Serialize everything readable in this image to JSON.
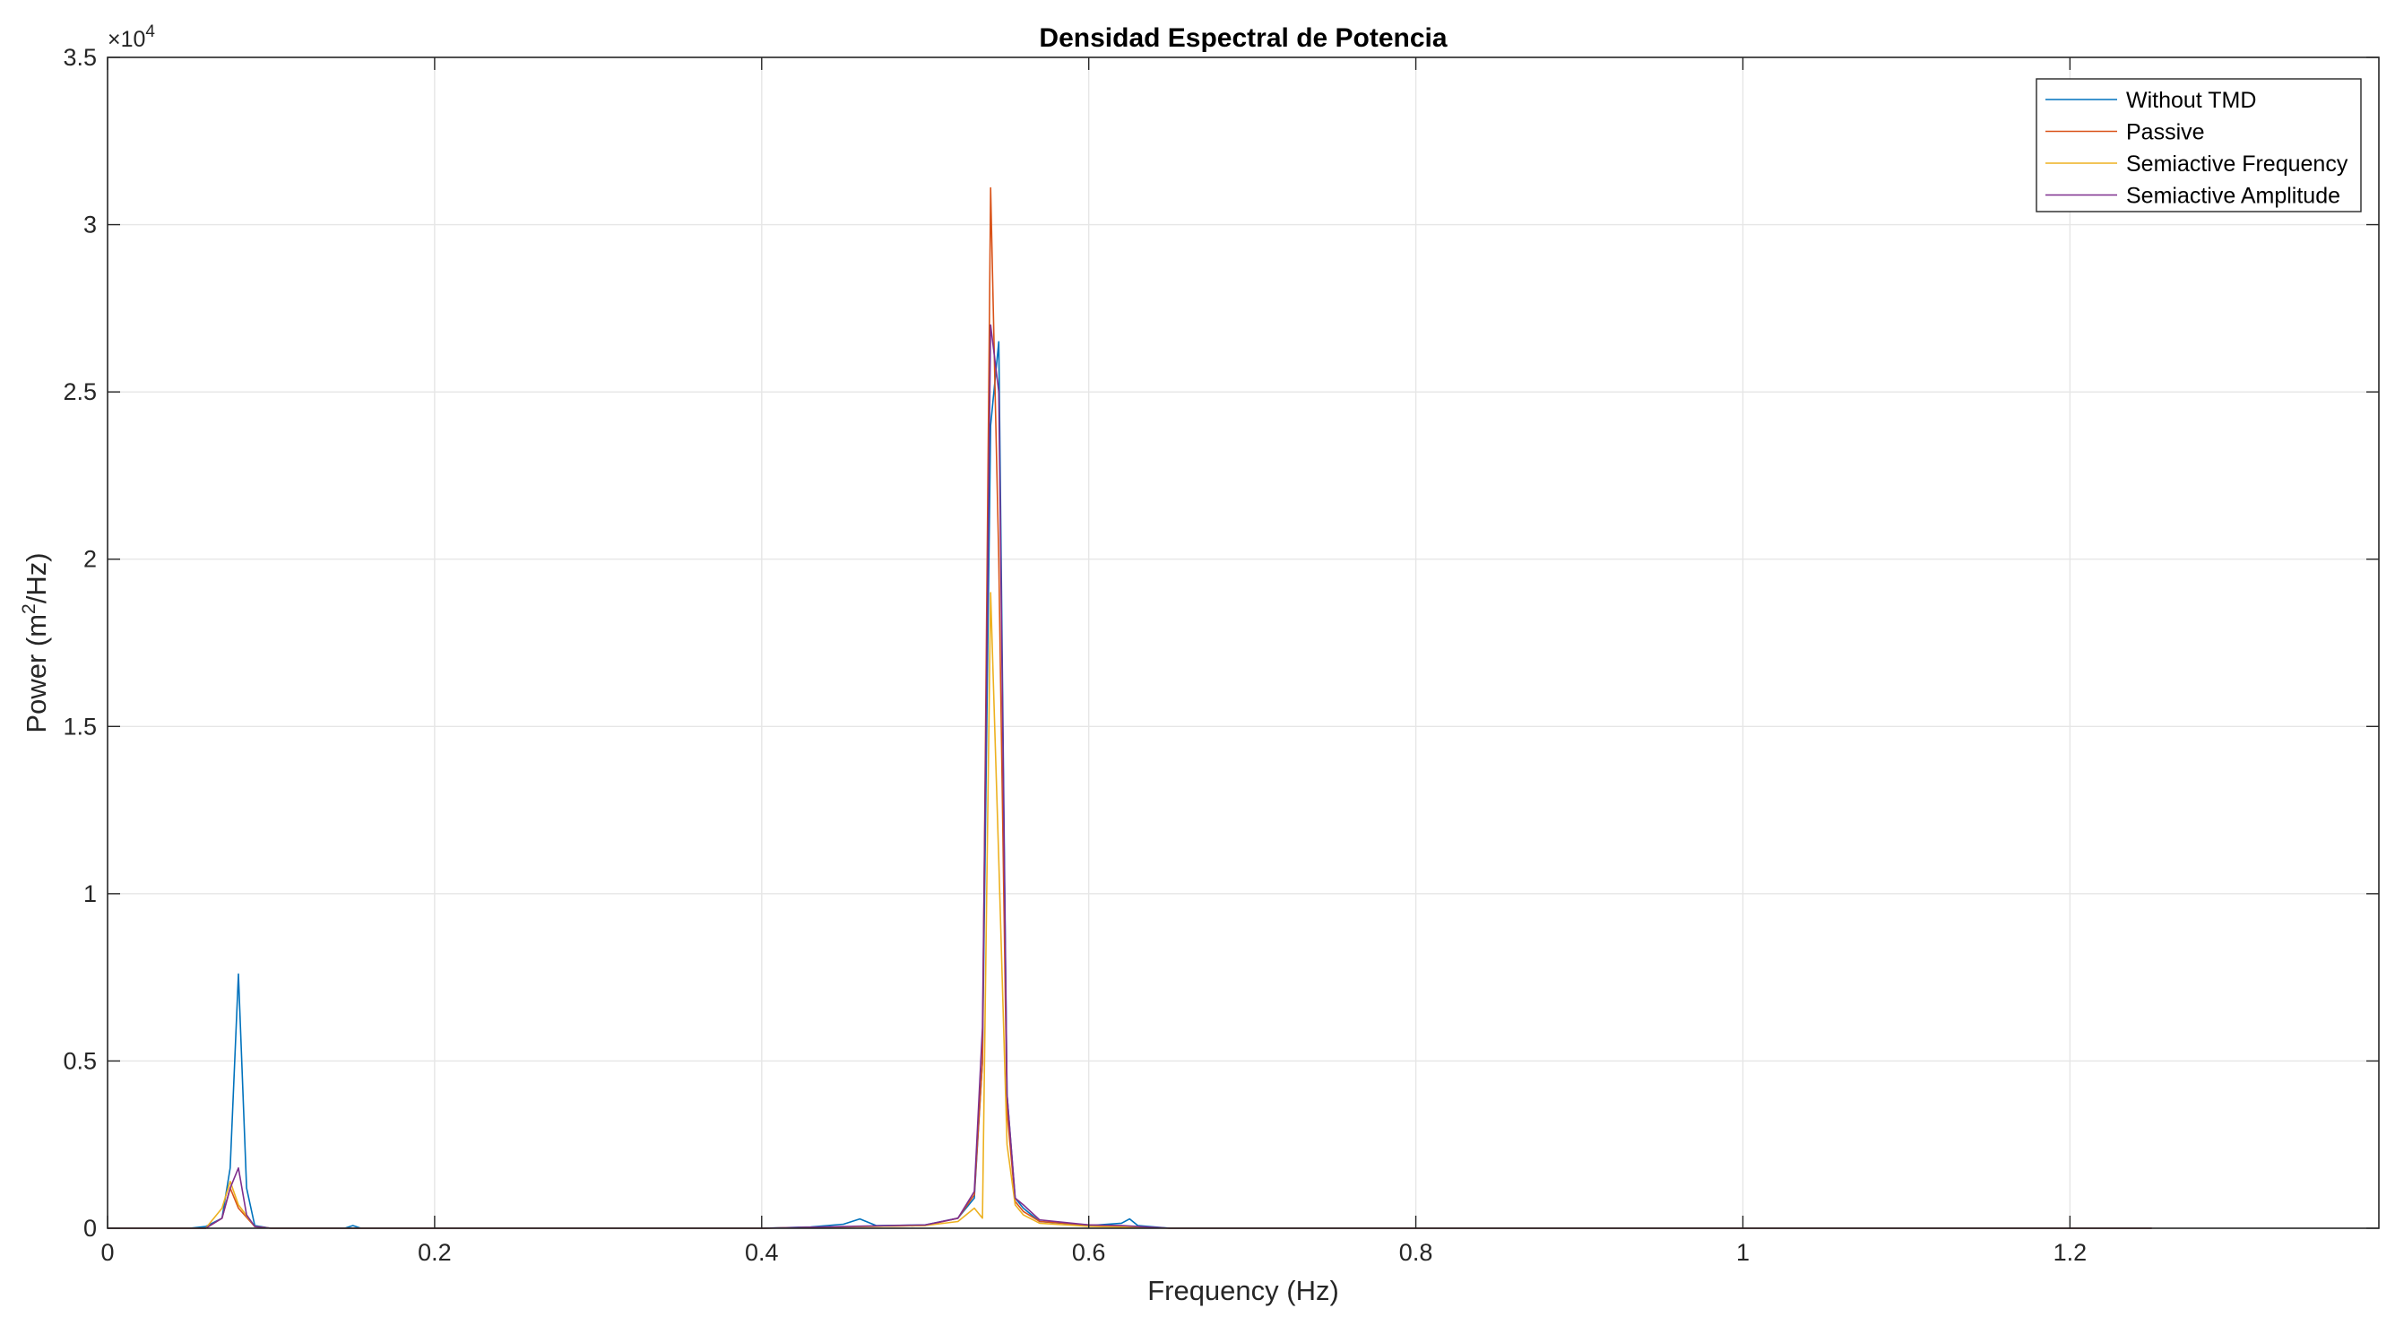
{
  "chart_data": {
    "type": "line",
    "title": "Densidad Espectral de Potencia",
    "xlabel": "Frequency (Hz)",
    "ylabel_main": "Power (m",
    "ylabel_sup": "2",
    "ylabel_tail": "/Hz)",
    "y_exponent_base": "×10",
    "y_exponent_power": "4",
    "y_scale": 10000,
    "xlim": [
      0,
      1.3889
    ],
    "ylim": [
      0,
      35000
    ],
    "xticks": [
      0,
      0.2,
      0.4,
      0.6,
      0.8,
      1,
      1.2
    ],
    "xtick_labels": [
      "0",
      "0.2",
      "0.4",
      "0.6",
      "0.8",
      "1",
      "1.2"
    ],
    "yticks": [
      0,
      5000,
      10000,
      15000,
      20000,
      25000,
      30000,
      35000
    ],
    "ytick_labels": [
      "0",
      "0.5",
      "1",
      "1.5",
      "2",
      "2.5",
      "3",
      "3.5"
    ],
    "grid": true,
    "legend_position": "top-right",
    "series": [
      {
        "name": "Without TMD",
        "color": "#0072BD",
        "points": [
          [
            0,
            0
          ],
          [
            0.05,
            0
          ],
          [
            0.06,
            50
          ],
          [
            0.07,
            300
          ],
          [
            0.075,
            1800
          ],
          [
            0.08,
            7600
          ],
          [
            0.085,
            1200
          ],
          [
            0.09,
            80
          ],
          [
            0.1,
            0
          ],
          [
            0.145,
            0
          ],
          [
            0.15,
            80
          ],
          [
            0.155,
            0
          ],
          [
            0.4,
            0
          ],
          [
            0.43,
            40
          ],
          [
            0.45,
            120
          ],
          [
            0.46,
            280
          ],
          [
            0.47,
            80
          ],
          [
            0.5,
            100
          ],
          [
            0.52,
            300
          ],
          [
            0.53,
            900
          ],
          [
            0.535,
            5000
          ],
          [
            0.54,
            24000
          ],
          [
            0.545,
            26500
          ],
          [
            0.55,
            4000
          ],
          [
            0.555,
            900
          ],
          [
            0.56,
            600
          ],
          [
            0.57,
            200
          ],
          [
            0.6,
            80
          ],
          [
            0.62,
            150
          ],
          [
            0.625,
            280
          ],
          [
            0.63,
            80
          ],
          [
            0.65,
            0
          ],
          [
            1.25,
            0
          ]
        ]
      },
      {
        "name": "Passive",
        "color": "#D95319",
        "points": [
          [
            0,
            0
          ],
          [
            0.06,
            0
          ],
          [
            0.07,
            300
          ],
          [
            0.075,
            1200
          ],
          [
            0.08,
            600
          ],
          [
            0.09,
            50
          ],
          [
            0.1,
            0
          ],
          [
            0.4,
            0
          ],
          [
            0.45,
            40
          ],
          [
            0.5,
            80
          ],
          [
            0.52,
            300
          ],
          [
            0.53,
            1000
          ],
          [
            0.535,
            5000
          ],
          [
            0.54,
            31100
          ],
          [
            0.545,
            20000
          ],
          [
            0.55,
            3500
          ],
          [
            0.555,
            800
          ],
          [
            0.56,
            500
          ],
          [
            0.57,
            200
          ],
          [
            0.6,
            100
          ],
          [
            0.62,
            60
          ],
          [
            0.65,
            0
          ],
          [
            1.25,
            0
          ]
        ]
      },
      {
        "name": "Semiactive Frequency",
        "color": "#EDB120",
        "points": [
          [
            0,
            0
          ],
          [
            0.06,
            0
          ],
          [
            0.07,
            600
          ],
          [
            0.075,
            1400
          ],
          [
            0.08,
            700
          ],
          [
            0.09,
            50
          ],
          [
            0.1,
            0
          ],
          [
            0.4,
            0
          ],
          [
            0.45,
            40
          ],
          [
            0.5,
            80
          ],
          [
            0.52,
            200
          ],
          [
            0.53,
            600
          ],
          [
            0.535,
            300
          ],
          [
            0.54,
            19000
          ],
          [
            0.545,
            11000
          ],
          [
            0.55,
            2500
          ],
          [
            0.555,
            700
          ],
          [
            0.56,
            400
          ],
          [
            0.57,
            150
          ],
          [
            0.6,
            60
          ],
          [
            0.65,
            0
          ],
          [
            1.25,
            0
          ]
        ]
      },
      {
        "name": "Semiactive Amplitude",
        "color": "#7E2F8E",
        "points": [
          [
            0,
            0
          ],
          [
            0.06,
            0
          ],
          [
            0.07,
            300
          ],
          [
            0.075,
            1200
          ],
          [
            0.08,
            1800
          ],
          [
            0.085,
            400
          ],
          [
            0.09,
            50
          ],
          [
            0.1,
            0
          ],
          [
            0.4,
            0
          ],
          [
            0.45,
            50
          ],
          [
            0.5,
            100
          ],
          [
            0.52,
            300
          ],
          [
            0.53,
            1100
          ],
          [
            0.535,
            6000
          ],
          [
            0.54,
            27000
          ],
          [
            0.545,
            25000
          ],
          [
            0.55,
            4000
          ],
          [
            0.555,
            900
          ],
          [
            0.56,
            700
          ],
          [
            0.57,
            250
          ],
          [
            0.6,
            100
          ],
          [
            0.62,
            80
          ],
          [
            0.65,
            0
          ],
          [
            1.25,
            0
          ]
        ]
      }
    ]
  }
}
